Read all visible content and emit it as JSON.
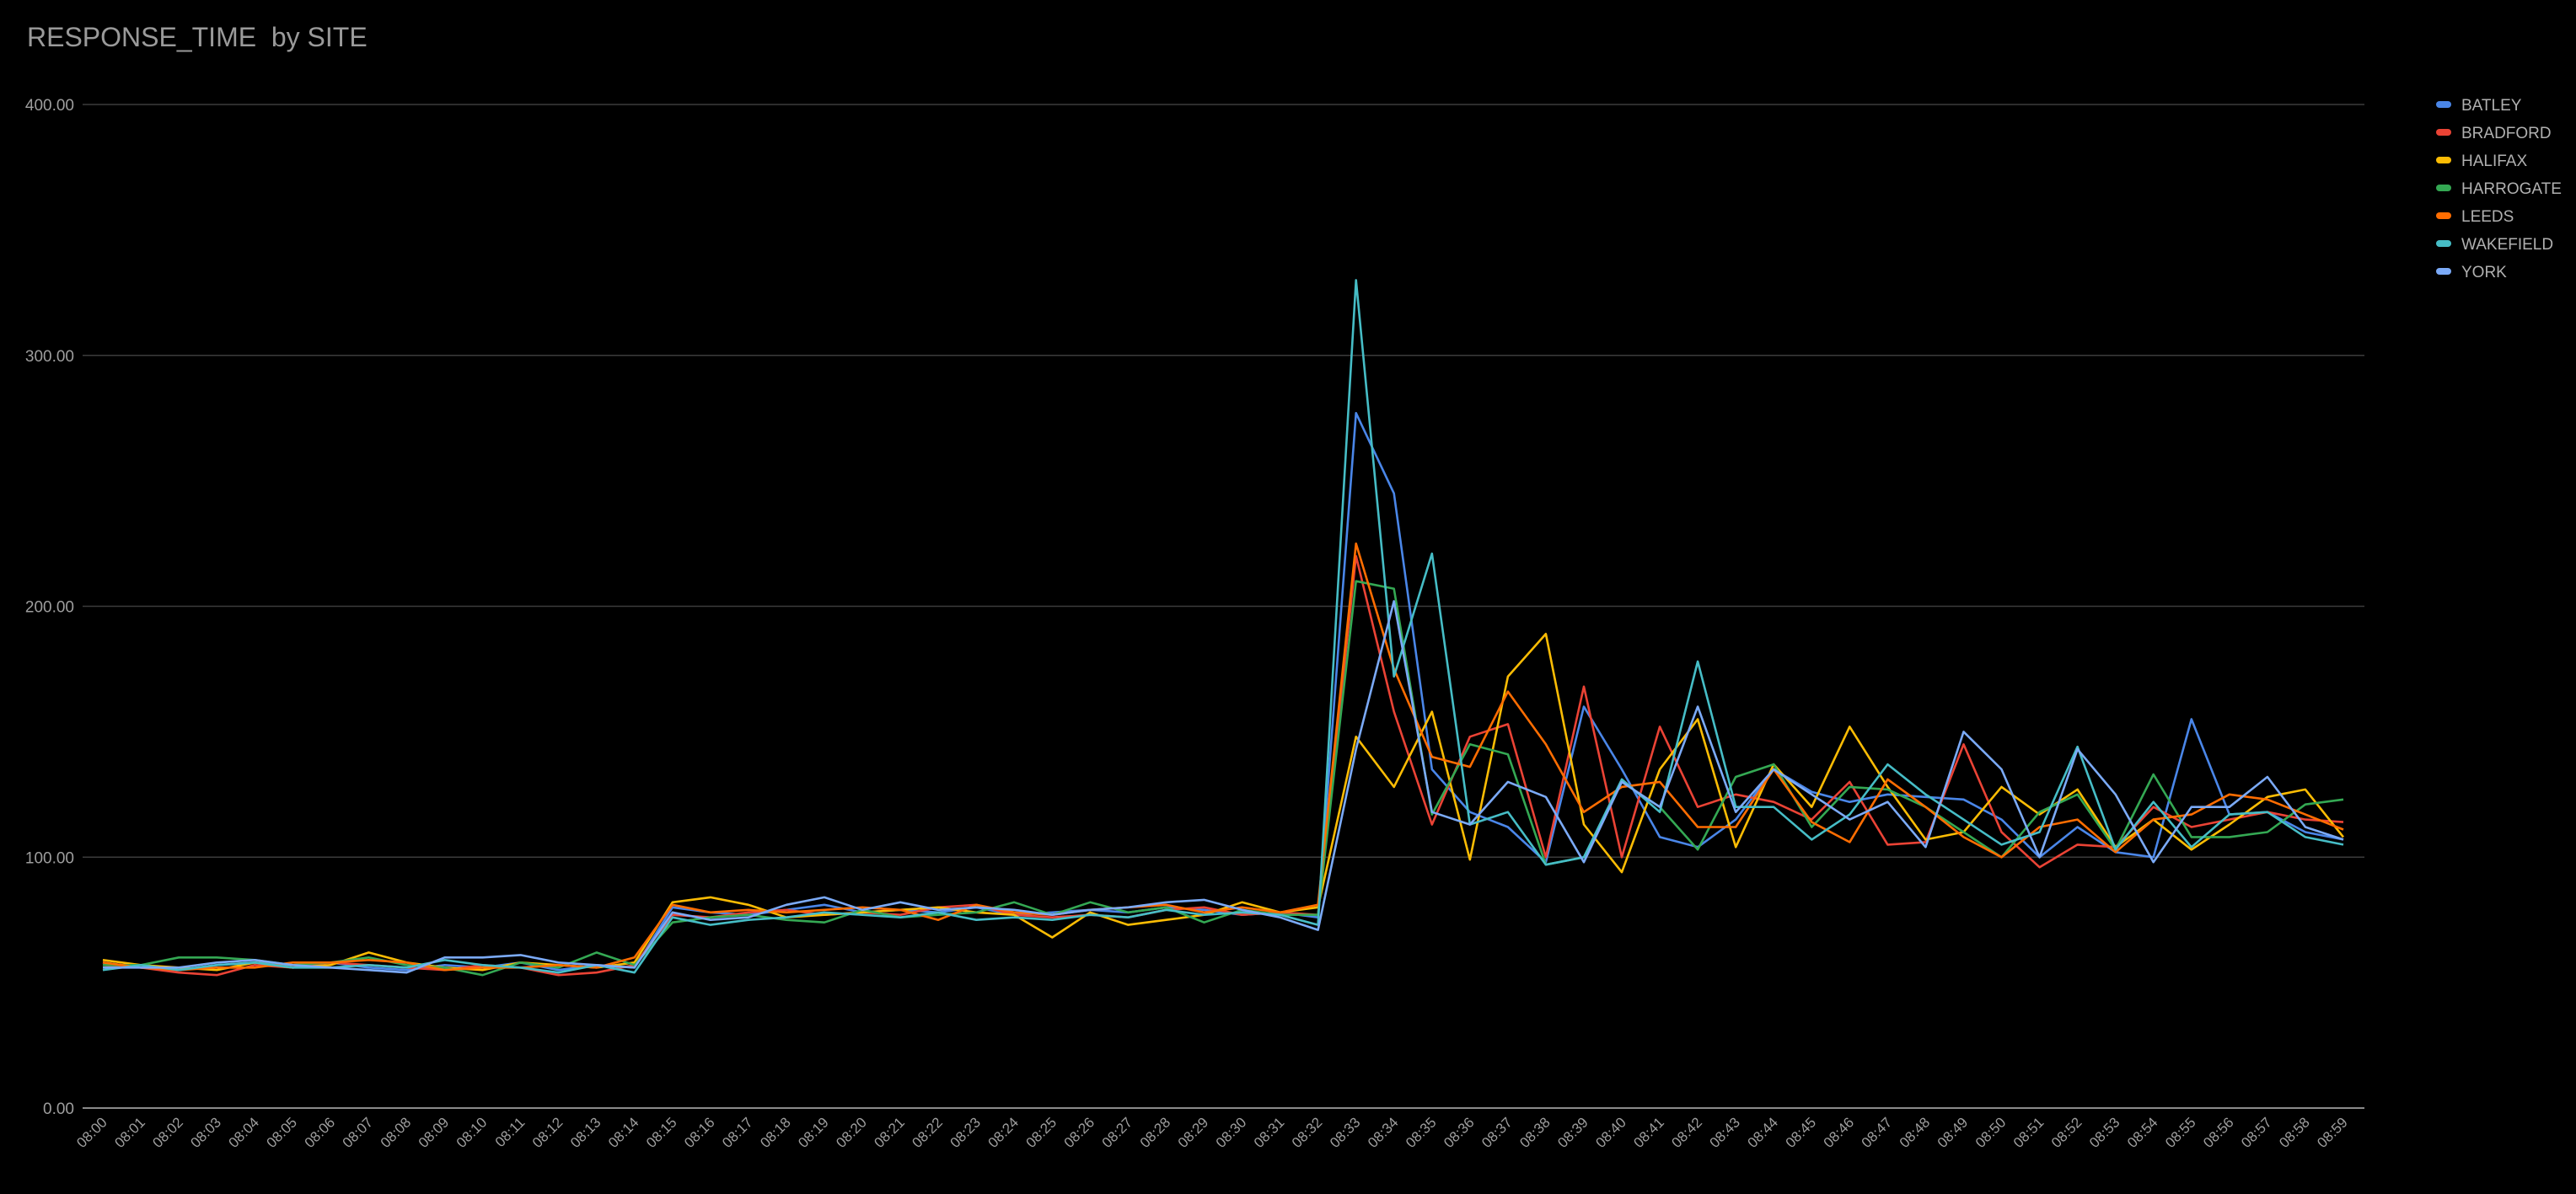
{
  "chart_data": {
    "type": "line",
    "title": "RESPONSE_TIME  by SITE",
    "xlabel": "",
    "ylabel": "",
    "ylim": [
      0,
      400
    ],
    "yticks": [
      "0.00",
      "100.00",
      "200.00",
      "300.00",
      "400.00"
    ],
    "grid": true,
    "legend": "right",
    "background": "#000000",
    "categories": [
      "08:00",
      "08:01",
      "08:02",
      "08:03",
      "08:04",
      "08:05",
      "08:06",
      "08:07",
      "08:08",
      "08:09",
      "08:10",
      "08:11",
      "08:12",
      "08:13",
      "08:14",
      "08:15",
      "08:16",
      "08:17",
      "08:18",
      "08:19",
      "08:20",
      "08:21",
      "08:22",
      "08:23",
      "08:24",
      "08:25",
      "08:26",
      "08:27",
      "08:28",
      "08:29",
      "08:30",
      "08:31",
      "08:32",
      "08:33",
      "08:34",
      "08:35",
      "08:36",
      "08:37",
      "08:38",
      "08:39",
      "08:40",
      "08:41",
      "08:42",
      "08:43",
      "08:44",
      "08:45",
      "08:46",
      "08:47",
      "08:48",
      "08:49",
      "08:50",
      "08:51",
      "08:52",
      "08:53",
      "08:54",
      "08:55",
      "08:56",
      "08:57",
      "08:58",
      "08:59"
    ],
    "series": [
      {
        "name": "BATLEY",
        "color": "#4a86e8",
        "values": [
          58,
          56,
          55,
          57,
          58,
          57,
          58,
          56,
          55,
          57,
          56,
          58,
          55,
          57,
          56,
          80,
          78,
          77,
          79,
          81,
          78,
          79,
          78,
          80,
          77,
          78,
          79,
          78,
          80,
          79,
          77,
          78,
          76,
          277,
          245,
          135,
          118,
          112,
          98,
          160,
          135,
          108,
          104,
          115,
          135,
          126,
          122,
          125,
          124,
          123,
          115,
          100,
          112,
          102,
          100,
          155,
          117,
          118,
          110,
          107
        ]
      },
      {
        "name": "BRADFORD",
        "color": "#ea4335",
        "values": [
          57,
          56,
          54,
          53,
          57,
          56,
          58,
          57,
          56,
          55,
          57,
          56,
          53,
          54,
          57,
          77,
          76,
          78,
          79,
          77,
          78,
          77,
          80,
          81,
          77,
          76,
          77,
          76,
          79,
          80,
          77,
          78,
          77,
          220,
          158,
          113,
          148,
          153,
          100,
          168,
          100,
          152,
          120,
          125,
          122,
          115,
          130,
          105,
          106,
          145,
          110,
          96,
          105,
          104,
          120,
          112,
          115,
          118,
          115,
          114
        ]
      },
      {
        "name": "HALIFAX",
        "color": "#fbbc04",
        "values": [
          59,
          57,
          56,
          55,
          58,
          56,
          57,
          62,
          58,
          56,
          55,
          58,
          57,
          56,
          58,
          82,
          84,
          81,
          76,
          77,
          78,
          79,
          80,
          78,
          77,
          68,
          78,
          73,
          75,
          77,
          82,
          78,
          80,
          148,
          128,
          158,
          99,
          172,
          189,
          113,
          94,
          135,
          155,
          104,
          137,
          120,
          152,
          128,
          107,
          110,
          128,
          117,
          127,
          104,
          115,
          103,
          113,
          124,
          127,
          108
        ]
      },
      {
        "name": "HARROGATE",
        "color": "#34a853",
        "values": [
          57,
          57,
          60,
          60,
          59,
          57,
          58,
          60,
          57,
          56,
          53,
          58,
          56,
          62,
          57,
          74,
          76,
          77,
          75,
          74,
          79,
          76,
          77,
          78,
          82,
          77,
          82,
          78,
          80,
          74,
          79,
          77,
          77,
          210,
          207,
          117,
          145,
          141,
          97,
          100,
          130,
          120,
          103,
          132,
          137,
          112,
          128,
          127,
          120,
          110,
          100,
          118,
          125,
          103,
          133,
          108,
          108,
          110,
          121,
          123
        ]
      },
      {
        "name": "LEEDS",
        "color": "#ff6d01",
        "values": [
          58,
          56,
          55,
          56,
          56,
          58,
          58,
          59,
          58,
          55,
          56,
          56,
          57,
          56,
          60,
          81,
          78,
          79,
          78,
          79,
          80,
          79,
          75,
          81,
          78,
          77,
          79,
          80,
          81,
          78,
          80,
          78,
          81,
          225,
          175,
          140,
          136,
          166,
          145,
          118,
          128,
          130,
          112,
          112,
          135,
          114,
          106,
          131,
          120,
          108,
          100,
          112,
          115,
          102,
          115,
          117,
          125,
          123,
          117,
          111
        ]
      },
      {
        "name": "WAKEFIELD",
        "color": "#46bdc6",
        "values": [
          55,
          57,
          55,
          57,
          58,
          56,
          56,
          57,
          56,
          59,
          57,
          56,
          54,
          57,
          54,
          76,
          73,
          75,
          76,
          78,
          77,
          76,
          78,
          75,
          76,
          75,
          77,
          76,
          79,
          77,
          78,
          77,
          73,
          330,
          172,
          221,
          113,
          118,
          97,
          100,
          131,
          118,
          178,
          120,
          120,
          107,
          117,
          137,
          125,
          115,
          105,
          110,
          144,
          103,
          122,
          104,
          117,
          118,
          108,
          105
        ]
      },
      {
        "name": "YORK",
        "color": "#7baaf7",
        "values": [
          56,
          56,
          56,
          58,
          59,
          57,
          56,
          55,
          54,
          60,
          60,
          61,
          58,
          57,
          56,
          78,
          75,
          76,
          81,
          84,
          79,
          82,
          79,
          80,
          79,
          77,
          79,
          80,
          82,
          83,
          79,
          76,
          71,
          143,
          202,
          118,
          113,
          130,
          124,
          98,
          130,
          120,
          160,
          118,
          135,
          125,
          115,
          122,
          104,
          150,
          135,
          100,
          143,
          125,
          98,
          120,
          120,
          132,
          112,
          107
        ]
      }
    ]
  }
}
